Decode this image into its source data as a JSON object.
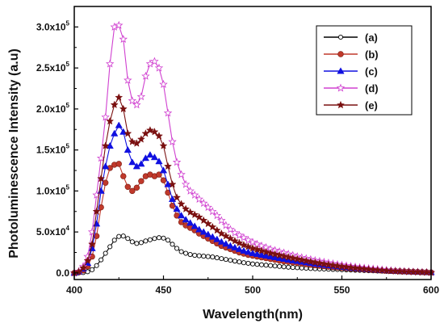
{
  "chart_data": {
    "type": "line",
    "xlabel": "Wavelength(nm)",
    "ylabel": "Photoluminescence Intensity (a.u)",
    "xlim": [
      400,
      600
    ],
    "ylim": [
      -8000,
      325000
    ],
    "x_ticks": [
      400,
      450,
      500,
      550,
      600
    ],
    "x_tick_labels": [
      "400",
      "450",
      "500",
      "550",
      "600"
    ],
    "y_ticks": [
      0,
      50000,
      100000,
      150000,
      200000,
      250000,
      300000
    ],
    "y_tick_labels": [
      {
        "mantissa": "0.0",
        "exp": ""
      },
      {
        "mantissa": "5.0x10",
        "exp": "4"
      },
      {
        "mantissa": "1.0x10",
        "exp": "5"
      },
      {
        "mantissa": "1.5x10",
        "exp": "5"
      },
      {
        "mantissa": "2.0x10",
        "exp": "5"
      },
      {
        "mantissa": "2.5x10",
        "exp": "5"
      },
      {
        "mantissa": "3.0x10",
        "exp": "5"
      }
    ],
    "grid": false,
    "legend": {
      "position": "top-right"
    },
    "x": [
      400,
      402.5,
      405,
      407.5,
      410,
      412.5,
      415,
      417.5,
      420,
      422.5,
      425,
      427.5,
      430,
      432.5,
      435,
      437.5,
      440,
      442.5,
      445,
      447.5,
      450,
      452.5,
      455,
      457.5,
      460,
      462.5,
      465,
      467.5,
      470,
      472.5,
      475,
      477.5,
      480,
      482.5,
      485,
      487.5,
      490,
      492.5,
      495,
      497.5,
      500,
      502.5,
      505,
      507.5,
      510,
      512.5,
      515,
      517.5,
      520,
      522.5,
      525,
      527.5,
      530,
      532.5,
      535,
      537.5,
      540,
      542.5,
      545,
      547.5,
      550,
      552.5,
      555,
      557.5,
      560,
      562.5,
      565,
      567.5,
      570,
      572.5,
      575,
      577.5,
      580,
      582.5,
      585,
      587.5,
      590,
      592.5,
      595,
      597.5,
      600
    ],
    "series": [
      {
        "name": "(a)",
        "color": "#000000",
        "marker": "circle-open",
        "values": [
          0,
          0,
          500,
          1500,
          4000,
          9000,
          16000,
          24000,
          32000,
          40000,
          44500,
          45000,
          42000,
          38000,
          36000,
          37000,
          39000,
          40500,
          42000,
          43000,
          42500,
          40000,
          35000,
          30000,
          26000,
          24000,
          22500,
          21500,
          21000,
          20500,
          20000,
          19500,
          18500,
          17500,
          16500,
          15500,
          14500,
          13500,
          12500,
          11800,
          11000,
          10500,
          10000,
          9500,
          9000,
          8500,
          8000,
          7500,
          7000,
          6700,
          6400,
          6100,
          5800,
          5500,
          5200,
          5000,
          4800,
          4600,
          4400,
          4200,
          4000,
          3800,
          3600,
          3400,
          3200,
          3000,
          2800,
          2600,
          2400,
          2200,
          2000,
          1850,
          1700,
          1550,
          1400,
          1250,
          1100,
          950,
          800,
          650,
          500
        ]
      },
      {
        "name": "(b)",
        "color": "#c0392b",
        "marker": "circle-filled",
        "values": [
          0,
          1000,
          3000,
          8000,
          20000,
          45000,
          80000,
          110000,
          128000,
          132000,
          133000,
          118000,
          105000,
          100000,
          104000,
          112000,
          118000,
          120000,
          118000,
          120000,
          113000,
          98000,
          82000,
          70000,
          62000,
          58000,
          55000,
          52000,
          48000,
          45000,
          42000,
          39000,
          36000,
          33000,
          31000,
          29000,
          27000,
          25000,
          23500,
          22000,
          21000,
          20000,
          19000,
          18000,
          17000,
          16000,
          15000,
          14200,
          13500,
          12800,
          12100,
          11400,
          10700,
          10000,
          9400,
          8800,
          8200,
          7600,
          7100,
          6600,
          6100,
          5700,
          5300,
          4900,
          4500,
          4200,
          3900,
          3600,
          3300,
          3000,
          2700,
          2500,
          2300,
          2100,
          1900,
          1700,
          1500,
          1300,
          1100,
          900,
          700
        ]
      },
      {
        "name": "(c)",
        "color": "#1010e0",
        "marker": "triangle-filled",
        "values": [
          0,
          1500,
          5000,
          12000,
          30000,
          60000,
          100000,
          130000,
          155000,
          170000,
          180000,
          172000,
          150000,
          135000,
          130000,
          133000,
          140000,
          144000,
          141000,
          136000,
          125000,
          108000,
          90000,
          78000,
          70000,
          65000,
          61000,
          57000,
          53000,
          50000,
          47000,
          44000,
          41000,
          38000,
          35500,
          33000,
          31000,
          29000,
          27000,
          25500,
          24000,
          23000,
          22000,
          21000,
          20000,
          19000,
          18000,
          17000,
          16000,
          15200,
          14400,
          13600,
          12800,
          12000,
          11200,
          10500,
          9800,
          9200,
          8600,
          8000,
          7400,
          6800,
          6300,
          5800,
          5300,
          4900,
          4500,
          4100,
          3700,
          3400,
          3100,
          2800,
          2500,
          2200,
          2000,
          1800,
          1600,
          1400,
          1200,
          1000,
          800
        ]
      },
      {
        "name": "(d)",
        "color": "#d040d0",
        "marker": "star-open",
        "values": [
          0,
          2000,
          8000,
          20000,
          50000,
          95000,
          140000,
          190000,
          255000,
          300000,
          302000,
          285000,
          235000,
          210000,
          205000,
          215000,
          240000,
          255000,
          258000,
          250000,
          230000,
          195000,
          160000,
          135000,
          120000,
          108000,
          100000,
          95000,
          90000,
          85000,
          80000,
          75000,
          70000,
          64000,
          58000,
          53000,
          49000,
          46000,
          43000,
          40000,
          37500,
          35000,
          33000,
          31000,
          29000,
          27500,
          26000,
          24500,
          23000,
          21500,
          20000,
          18800,
          17600,
          16400,
          15200,
          14200,
          13200,
          12200,
          11300,
          10400,
          9600,
          8800,
          8100,
          7400,
          6700,
          6100,
          5500,
          5000,
          4500,
          4000,
          3500,
          3100,
          2700,
          2300,
          2000,
          1700,
          1400,
          1200,
          1000,
          800,
          600
        ]
      },
      {
        "name": "(e)",
        "color": "#7a1010",
        "marker": "star-filled",
        "values": [
          0,
          1500,
          6000,
          15000,
          35000,
          75000,
          115000,
          155000,
          185000,
          205000,
          214000,
          200000,
          170000,
          160000,
          158000,
          163000,
          170000,
          174000,
          172000,
          167000,
          155000,
          130000,
          108000,
          92000,
          84000,
          78000,
          74000,
          71000,
          68000,
          64000,
          60000,
          56000,
          52000,
          48000,
          45000,
          42000,
          39000,
          36500,
          34000,
          32000,
          30000,
          28500,
          27000,
          25500,
          24000,
          22800,
          21600,
          20400,
          19200,
          18000,
          16900,
          15800,
          14700,
          13700,
          12700,
          11800,
          10900,
          10100,
          9300,
          8600,
          7900,
          7200,
          6600,
          6000,
          5400,
          4900,
          4400,
          3900,
          3500,
          3100,
          2700,
          2400,
          2100,
          1800,
          1600,
          1400,
          1200,
          1000,
          800,
          650,
          500
        ]
      }
    ]
  }
}
